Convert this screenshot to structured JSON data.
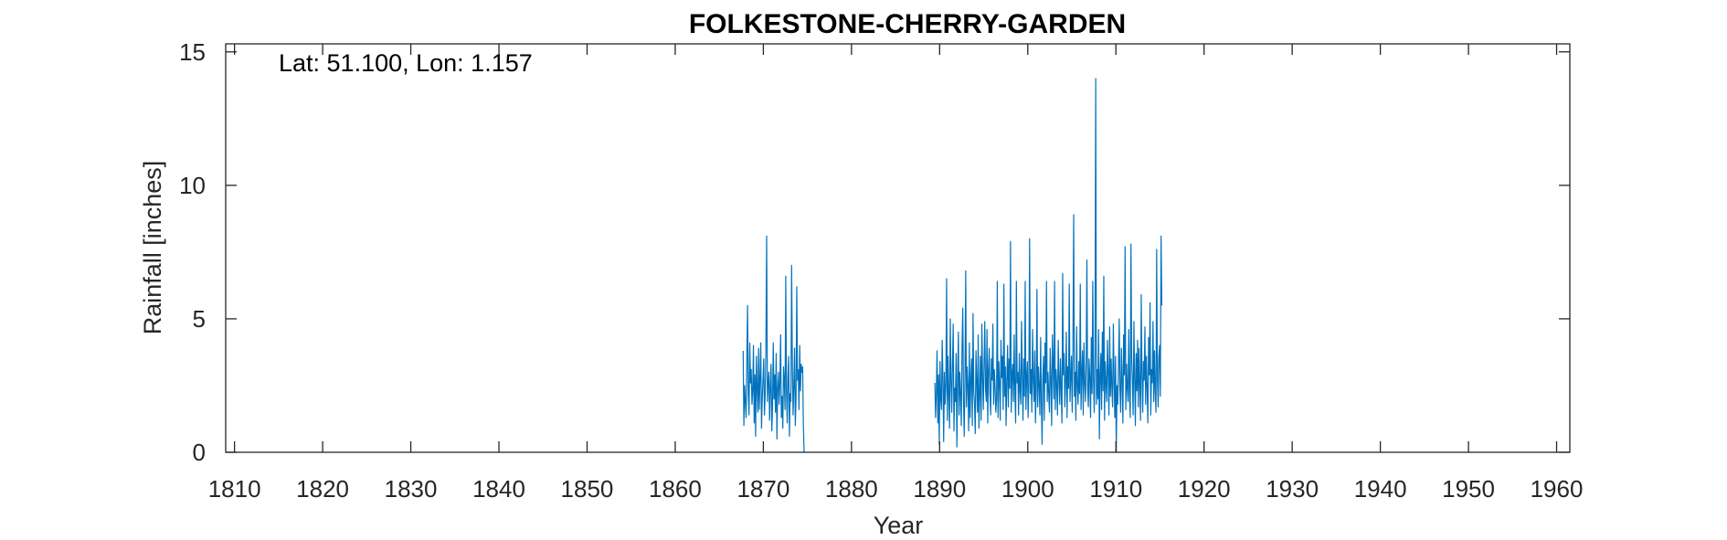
{
  "chart_data": {
    "type": "line",
    "title": "FOLKESTONE-CHERRY-GARDEN",
    "annotation": "Lat: 51.100, Lon: 1.157",
    "xlabel": "Year",
    "ylabel": "Rainfall [inches]",
    "xlim": [
      1809,
      1961.5
    ],
    "ylim": [
      0,
      15.3
    ],
    "xticks": [
      1810,
      1820,
      1830,
      1840,
      1850,
      1860,
      1870,
      1880,
      1890,
      1900,
      1910,
      1920,
      1930,
      1940,
      1950,
      1960
    ],
    "yticks": [
      0,
      5,
      10,
      15
    ],
    "grid": false,
    "box": true,
    "series": [
      {
        "color": "#0072BD",
        "note": "monthly rainfall; segments before 1867.7, between 1879.6 and 1889.4 have no data",
        "segments": [
          {
            "start_year": 1867.708,
            "values": [
              3.8,
              1.0,
              2.5,
              1.9,
              1.3,
              3.4,
              5.5,
              2.2,
              1.4,
              4.1,
              2.6,
              3.1,
              1.8,
              2.3,
              4.0,
              1.1,
              2.9,
              0.6,
              3.6,
              2.4,
              1.5,
              3.9,
              1.6,
              2.8,
              4.1,
              0.9,
              2.0,
              2.7,
              3.5,
              1.4,
              2.2,
              4.0,
              8.1,
              1.9,
              2.6,
              3.0,
              1.2,
              2.5,
              3.3,
              0.8,
              1.7,
              4.1,
              2.0,
              2.9,
              1.5,
              3.7,
              0.5,
              2.4,
              3.0,
              1.8,
              2.6,
              4.4,
              1.3,
              2.1,
              0.9,
              3.2,
              2.7,
              1.6,
              6.6,
              2.3,
              1.1,
              2.8,
              3.6,
              0.6,
              2.2,
              1.9,
              7.0,
              3.3,
              1.4,
              2.5,
              3.9,
              1.0,
              2.0,
              6.2,
              2.7,
              3.1,
              1.6,
              4.0,
              2.3,
              3.3,
              3.0,
              3.2,
              1.0,
              0.0
            ]
          },
          {
            "start_year": 1889.458,
            "values": [
              2.6,
              1.3,
              2.2,
              3.8,
              1.1,
              2.9,
              0.3,
              3.4,
              2.0,
              1.6,
              4.2,
              2.8,
              0.4,
              3.0,
              1.8,
              2.5,
              6.5,
              1.2,
              3.6,
              2.1,
              0.9,
              5.0,
              2.7,
              1.5,
              3.3,
              4.8,
              0.8,
              2.4,
              1.9,
              3.7,
              0.2,
              2.6,
              4.5,
              1.4,
              3.0,
              2.2,
              1.0,
              3.9,
              5.4,
              2.0,
              0.6,
              2.9,
              6.8,
              1.7,
              3.2,
              2.5,
              0.8,
              4.1,
              1.3,
              2.7,
              3.5,
              1.0,
              5.2,
              2.3,
              1.8,
              0.7,
              3.8,
              2.6,
              1.5,
              4.4,
              0.9,
              2.1,
              3.6,
              1.2,
              4.8,
              2.8,
              1.6,
              3.3,
              4.9,
              2.4,
              1.9,
              4.6,
              1.1,
              3.0,
              3.9,
              2.2,
              1.4,
              3.5,
              2.7,
              4.8,
              1.8,
              3.1,
              2.4,
              1.5,
              2.0,
              6.4,
              1.3,
              3.4,
              2.6,
              1.2,
              4.2,
              2.8,
              3.6,
              1.6,
              6.3,
              2.1,
              3.2,
              1.0,
              2.7,
              4.0,
              1.7,
              3.5,
              2.4,
              7.9,
              1.5,
              2.9,
              3.3,
              1.9,
              4.4,
              2.2,
              1.1,
              6.4,
              2.6,
              3.0,
              1.4,
              3.7,
              2.3,
              1.8,
              4.9,
              2.9,
              1.2,
              3.5,
              2.1,
              6.4,
              1.6,
              2.8,
              3.4,
              1.3,
              2.6,
              8.0,
              2.2,
              3.1,
              1.5,
              4.6,
              2.7,
              1.9,
              3.8,
              1.1,
              2.4,
              6.1,
              1.7,
              3.2,
              2.5,
              1.4,
              4.3,
              2.0,
              0.3,
              2.8,
              3.6,
              1.2,
              4.1,
              2.6,
              6.4,
              1.9,
              3.0,
              2.2,
              1.5,
              3.9,
              2.7,
              1.0,
              4.4,
              3.3,
              2.0,
              6.4,
              1.6,
              3.1,
              2.5,
              1.4,
              4.2,
              2.8,
              1.8,
              3.5,
              2.3,
              1.1,
              6.7,
              2.9,
              3.7,
              1.7,
              2.6,
              4.5,
              1.3,
              3.2,
              2.4,
              6.3,
              1.9,
              2.8,
              3.6,
              1.5,
              4.0,
              8.9,
              2.1,
              3.0,
              1.2,
              4.7,
              2.5,
              1.8,
              3.4,
              2.2,
              6.3,
              1.6,
              2.9,
              3.8,
              1.4,
              4.1,
              2.6,
              1.9,
              3.3,
              7.2,
              2.4,
              1.7,
              3.5,
              2.8,
              1.3,
              4.3,
              2.2,
              6.4,
              2.7,
              1.5,
              3.6,
              14.0,
              1.8,
              3.1,
              2.0,
              4.6,
              0.5,
              2.9,
              3.7,
              1.6,
              4.5,
              2.3,
              6.6,
              1.2,
              3.4,
              2.6,
              1.9,
              4.2,
              3.0,
              1.4,
              4.7,
              2.1,
              3.5,
              2.4,
              1.7,
              4.8,
              2.8,
              1.3,
              3.6,
              0.0,
              2.5,
              1.8,
              3.2,
              5.0,
              2.3,
              1.5,
              3.9,
              2.7,
              1.1,
              4.4,
              2.9,
              7.7,
              1.6,
              3.3,
              2.4,
              1.9,
              4.6,
              2.2,
              1.3,
              7.8,
              3.5,
              2.6,
              1.4,
              4.9,
              2.8,
              1.0,
              3.7,
              2.3,
              4.2,
              1.7,
              3.9,
              2.5,
              1.2,
              5.9,
              2.9,
              1.5,
              3.4,
              2.7,
              4.7,
              1.8,
              3.6,
              2.4,
              1.1,
              4.3,
              2.9,
              5.6,
              1.4,
              3.1,
              2.6,
              4.9,
              1.9,
              3.8,
              2.3,
              1.5,
              7.6,
              2.8,
              1.7,
              3.6,
              4.0,
              2.1,
              8.1,
              5.5
            ]
          }
        ]
      }
    ]
  }
}
